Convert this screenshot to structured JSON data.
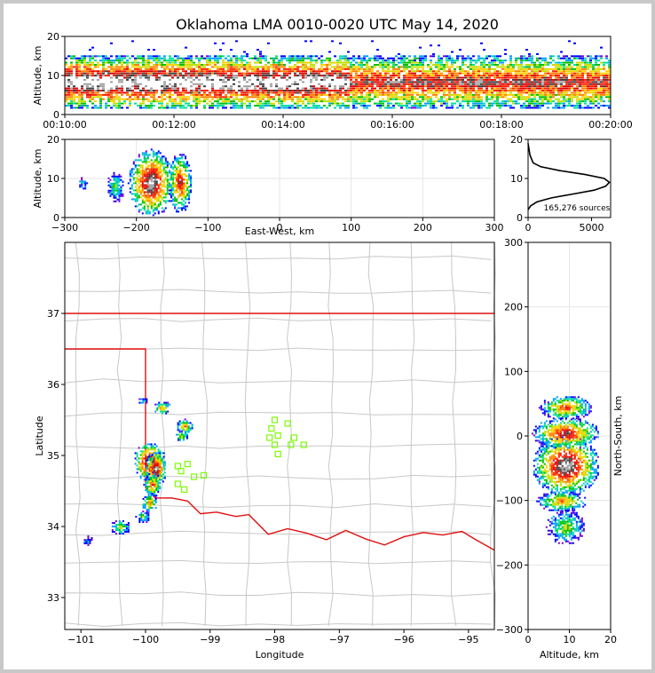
{
  "title": "Oklahoma LMA 0010-0020 UTC May 14, 2020",
  "source_count_label": "165,276 sources",
  "colors": {
    "state_border": "#e01010",
    "county_lines": "#c8c8c8",
    "station": "#7cfc00"
  },
  "colormap": "rainbow (purple-blue-green-yellow-red-white) source density",
  "chart_data": [
    {
      "type": "heatmap",
      "panel": "altitude-time",
      "ylabel": "Altitude, km",
      "ylim": [
        0,
        20
      ],
      "yticks": [
        "0",
        "10",
        "20"
      ],
      "xticks": [
        "00:10:00",
        "00:12:00",
        "00:14:00",
        "00:16:00",
        "00:18:00",
        "00:20:00"
      ],
      "xlim": [
        "00:10:00",
        "00:20:00"
      ],
      "band_bottom_km": 2,
      "band_top_km": 14,
      "core_km": [
        6,
        10
      ]
    },
    {
      "type": "heatmap",
      "panel": "east-west-altitude",
      "xlabel": "East-West, km",
      "ylabel": "Altitude, km",
      "xlim": [
        -300,
        300
      ],
      "ylim": [
        0,
        20
      ],
      "xticks": [
        "−300",
        "−200",
        "−100",
        "0",
        "100",
        "200",
        "300"
      ],
      "yticks": [
        "0",
        "10",
        "20"
      ],
      "cells": [
        {
          "x": -180,
          "y": 9,
          "intensity": 1.0
        },
        {
          "x": -140,
          "y": 9,
          "intensity": 0.8
        },
        {
          "x": -230,
          "y": 8,
          "intensity": 0.4
        },
        {
          "x": -275,
          "y": 9,
          "intensity": 0.3
        }
      ]
    },
    {
      "type": "line",
      "panel": "altitude-histogram",
      "xlim": [
        0,
        6500
      ],
      "ylim": [
        0,
        20
      ],
      "xticks": [
        "0",
        "5000"
      ],
      "yticks": [
        "0",
        "10",
        "20"
      ],
      "x": [
        0,
        200,
        700,
        1800,
        3500,
        5200,
        6100,
        6400,
        6000,
        4500,
        2500,
        1000,
        400,
        150,
        0
      ],
      "y": [
        2,
        3,
        4,
        5,
        6,
        7,
        8,
        9,
        10,
        11,
        12,
        13,
        14,
        16,
        19
      ]
    },
    {
      "type": "heatmap",
      "panel": "plan-view",
      "xlabel": "Longitude",
      "ylabel": "Latitude",
      "xlim": [
        -101.25,
        -94.6
      ],
      "ylim": [
        32.55,
        38.0
      ],
      "xticks": [
        "−101",
        "−100",
        "−99",
        "−98",
        "−97",
        "−96",
        "−95"
      ],
      "yticks": [
        "33",
        "34",
        "35",
        "36",
        "37"
      ],
      "stations": [
        [
          -98.0,
          35.5
        ],
        [
          -97.8,
          35.45
        ],
        [
          -98.05,
          35.38
        ],
        [
          -97.95,
          35.28
        ],
        [
          -98.08,
          35.25
        ],
        [
          -97.7,
          35.25
        ],
        [
          -98.0,
          35.15
        ],
        [
          -97.75,
          35.15
        ],
        [
          -97.55,
          35.15
        ],
        [
          -97.95,
          35.02
        ],
        [
          -99.5,
          34.85
        ],
        [
          -99.35,
          34.88
        ],
        [
          -99.45,
          34.78
        ],
        [
          -99.25,
          34.7
        ],
        [
          -99.1,
          34.72
        ],
        [
          -99.5,
          34.6
        ],
        [
          -99.4,
          34.52
        ]
      ],
      "cells": [
        {
          "x": -99.95,
          "y": 34.92,
          "intensity": 1.0
        },
        {
          "x": -99.85,
          "y": 34.82,
          "intensity": 0.95
        },
        {
          "x": -99.9,
          "y": 34.6,
          "intensity": 0.7
        },
        {
          "x": -99.95,
          "y": 34.35,
          "intensity": 0.6
        },
        {
          "x": -100.05,
          "y": 34.15,
          "intensity": 0.4
        },
        {
          "x": -100.4,
          "y": 34.0,
          "intensity": 0.45
        },
        {
          "x": -100.9,
          "y": 33.8,
          "intensity": 0.25
        },
        {
          "x": -99.75,
          "y": 35.68,
          "intensity": 0.6
        },
        {
          "x": -99.4,
          "y": 35.42,
          "intensity": 0.65
        },
        {
          "x": -99.45,
          "y": 35.28,
          "intensity": 0.55
        },
        {
          "x": -100.05,
          "y": 35.78,
          "intensity": 0.3
        }
      ]
    },
    {
      "type": "heatmap",
      "panel": "altitude-north-south",
      "xlabel": "Altitude, km",
      "ylabel": "North-South, km",
      "xlim": [
        0,
        20
      ],
      "ylim": [
        -300,
        300
      ],
      "xticks": [
        "0",
        "10",
        "20"
      ],
      "yticks": [
        "−300",
        "−200",
        "−100",
        "0",
        "100",
        "200",
        "300"
      ],
      "cells": [
        {
          "x": 9,
          "y": -45,
          "intensity": 1.0
        },
        {
          "x": 9,
          "y": 5,
          "intensity": 0.85
        },
        {
          "x": 9,
          "y": 45,
          "intensity": 0.7
        },
        {
          "x": 8,
          "y": -100,
          "intensity": 0.65
        },
        {
          "x": 9,
          "y": -140,
          "intensity": 0.45
        }
      ]
    }
  ]
}
